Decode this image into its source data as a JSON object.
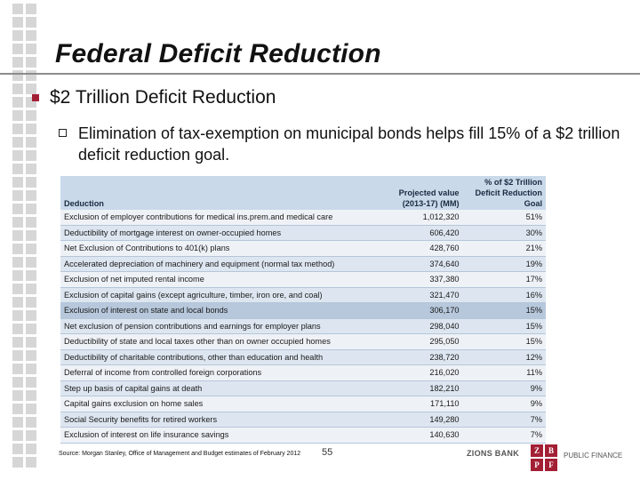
{
  "title": "Federal Deficit Reduction",
  "heading": "$2 Trillion Deficit Reduction",
  "body": "Elimination of tax-exemption on municipal bonds helps fill 15% of a $2 trillion deficit reduction goal.",
  "table": {
    "headers": [
      "Deduction",
      "Projected value (2013-17) (MM)",
      "% of $2 Trillion Deficit Reduction Goal"
    ],
    "rows": [
      [
        "Exclusion of employer contributions for medical ins.prem.and medical care",
        "1,012,320",
        "51%"
      ],
      [
        "Deductibility of mortgage interest on owner-occupied homes",
        "606,420",
        "30%"
      ],
      [
        "Net Exclusion of Contributions to 401(k) plans",
        "428,760",
        "21%"
      ],
      [
        "Accelerated depreciation of machinery and equipment (normal tax method)",
        "374,640",
        "19%"
      ],
      [
        "Exclusion of net imputed rental income",
        "337,380",
        "17%"
      ],
      [
        "Exclusion of capital gains (except agriculture, timber, iron ore, and coal)",
        "321,470",
        "16%"
      ],
      [
        "Exclusion of interest on state and local bonds",
        "306,170",
        "15%"
      ],
      [
        "Net exclusion of pension contributions and earnings for employer plans",
        "298,040",
        "15%"
      ],
      [
        "Deductibility of state and local taxes other than on owner occupied homes",
        "295,050",
        "15%"
      ],
      [
        "Deductibility of charitable contributions, other than education and health",
        "238,720",
        "12%"
      ],
      [
        "Deferral of income from controlled foreign corporations",
        "216,020",
        "11%"
      ],
      [
        "Step up basis of capital gains at death",
        "182,210",
        "9%"
      ],
      [
        "Capital gains exclusion on home sales",
        "171,110",
        "9%"
      ],
      [
        "Social Security benefits for retired workers",
        "149,280",
        "7%"
      ],
      [
        "Exclusion of interest on life insurance savings",
        "140,630",
        "7%"
      ]
    ],
    "highlight_row": 6
  },
  "footer": {
    "source": "Source: Morgan Stanley, Office of Management and Budget estimates of February 2012",
    "page": "55",
    "brand": "ZIONS BANK",
    "logo_letters": [
      "Z",
      "B",
      "P",
      "F"
    ],
    "division": "PUBLIC FINANCE"
  },
  "colors": {
    "accent": "#a31f34",
    "header_bg": "#c9d9ea",
    "highlight_bg": "#b7c8dc"
  }
}
